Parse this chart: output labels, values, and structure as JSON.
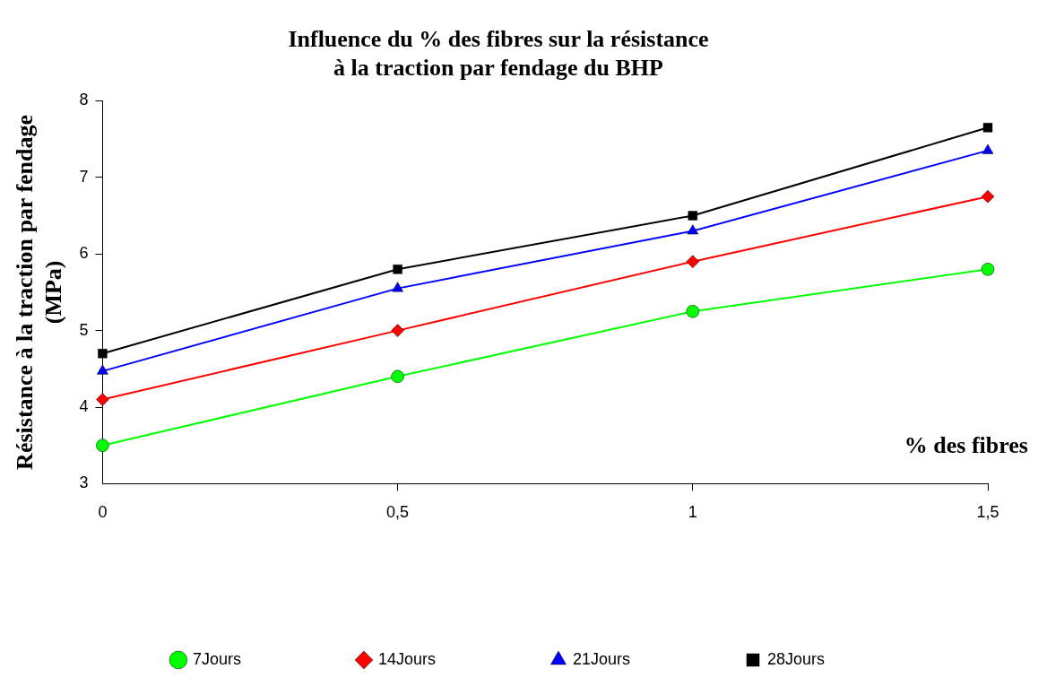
{
  "chart_data": {
    "type": "line",
    "title": "Influence du % des fibres sur la résistance\nà la traction par fendage du BHP",
    "xlabel": "% des fibres",
    "ylabel": "Résistance à la traction par fendage\n(MPa)",
    "x": [
      0,
      0.5,
      1,
      1.5
    ],
    "series": [
      {
        "name": "7Jours",
        "color": "#00ff00",
        "marker": "circle",
        "values": [
          3.5,
          4.4,
          5.25,
          5.8
        ]
      },
      {
        "name": "14Jours",
        "color": "#ff0000",
        "marker": "diamond",
        "values": [
          4.1,
          5.0,
          5.9,
          6.75
        ]
      },
      {
        "name": "21Jours",
        "color": "#0000ff",
        "marker": "triangle",
        "values": [
          4.47,
          5.55,
          6.3,
          7.35
        ]
      },
      {
        "name": "28Jours",
        "color": "#000000",
        "marker": "square",
        "values": [
          4.7,
          5.8,
          6.5,
          7.65
        ]
      }
    ],
    "xlim": [
      0,
      1.5
    ],
    "xticks": [
      0,
      {
        "value": 0.5,
        "label": "0,5"
      },
      1,
      {
        "value": 1.5,
        "label": "1,5"
      }
    ],
    "ylim": [
      3,
      8
    ],
    "yticks": [
      3,
      4,
      5,
      6,
      7,
      8
    ],
    "grid": false,
    "legend": "bottom",
    "line_style": "solid"
  }
}
